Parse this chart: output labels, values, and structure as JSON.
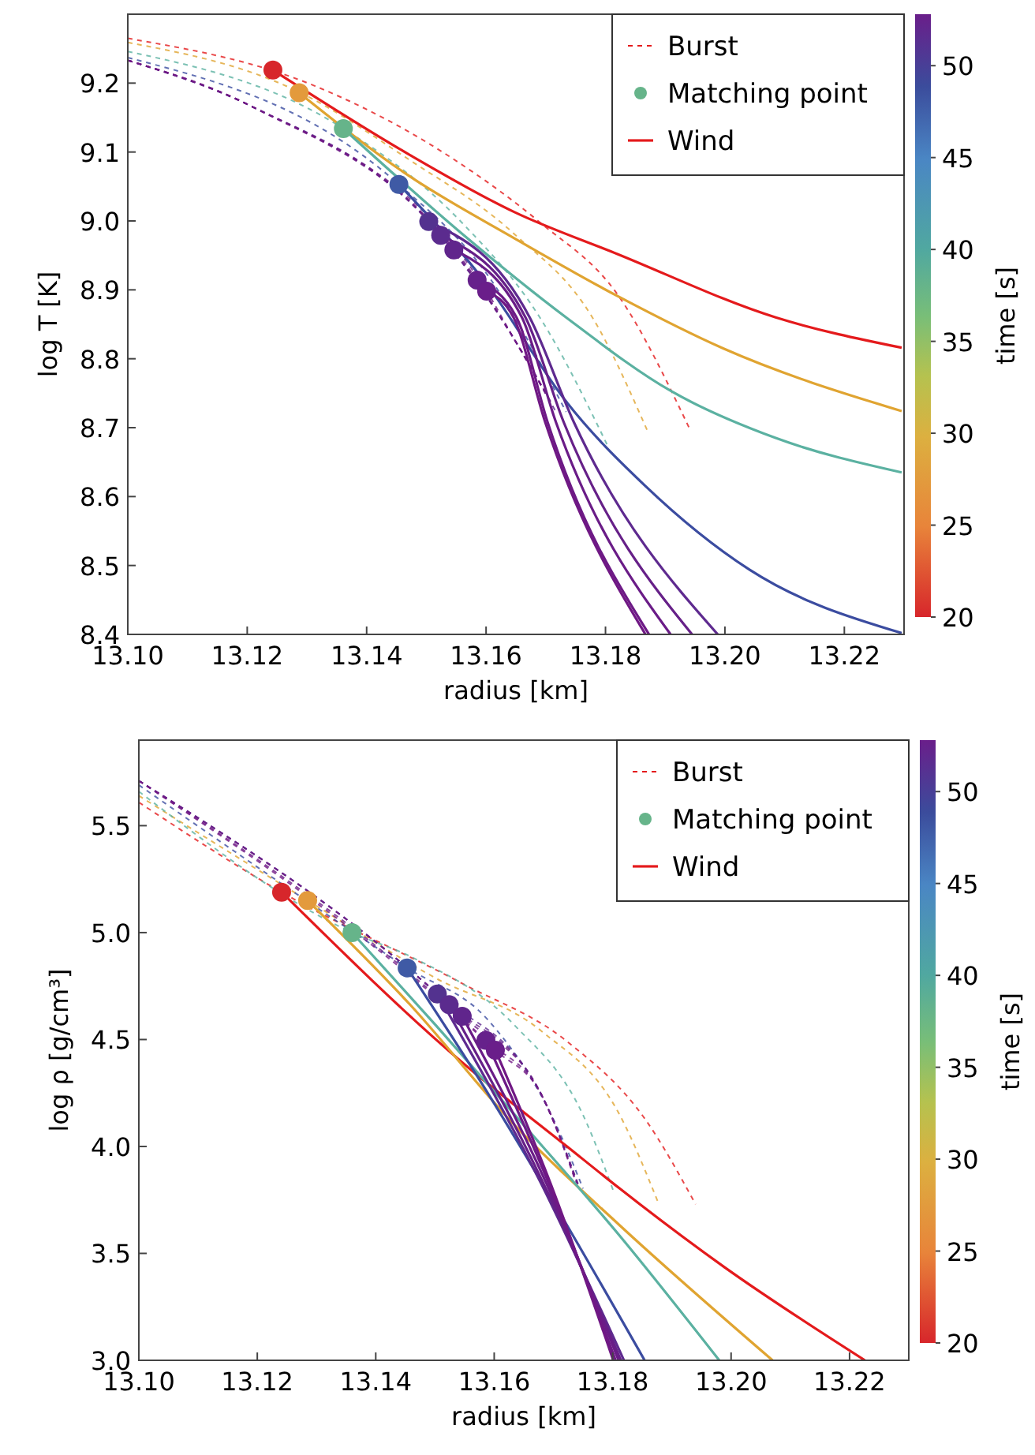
{
  "chart_data": [
    {
      "type": "line",
      "xlabel": "radius [km]",
      "ylabel": "log T [K]",
      "clabel": "time [s]",
      "legend": "top right",
      "xlim": [
        13.1,
        13.23
      ],
      "xticks": [
        {
          "value": 13.1,
          "label": "13.10"
        },
        {
          "value": 13.12,
          "label": "13.12"
        },
        {
          "value": 13.14,
          "label": "13.14"
        },
        {
          "value": 13.16,
          "label": "13.16"
        },
        {
          "value": 13.18,
          "label": "13.18"
        },
        {
          "value": 13.2,
          "label": "13.20"
        },
        {
          "value": 13.22,
          "label": "13.22"
        }
      ],
      "ylim": [
        8.4,
        9.3
      ],
      "yticks": [
        8.4,
        8.5,
        8.6,
        8.7,
        8.8,
        8.9,
        {
          "value": 9,
          "label": "9.0"
        },
        9.1,
        9.2
      ],
      "clim": [
        20,
        52.8
      ],
      "cticks": [
        20,
        25,
        30,
        35,
        40,
        45,
        50
      ],
      "series": [
        {
          "name": "Burst",
          "type": "line",
          "line_style": "dashed",
          "color": "#e41a1c",
          "x": [
            13.1,
            13.1313,
            13.1559,
            13.169,
            13.1822,
            13.194
          ],
          "values": [
            9.265,
            9.196,
            9.082,
            8.998,
            8.891,
            8.7
          ]
        },
        {
          "type": "line",
          "line_style": "dashed",
          "color": "#e0a431",
          "x": [
            13.1,
            13.1287,
            13.1471,
            13.1646,
            13.1778,
            13.187
          ],
          "values": [
            9.259,
            9.187,
            9.089,
            8.982,
            8.86,
            8.696
          ]
        },
        {
          "type": "line",
          "line_style": "dashed",
          "color": "#5bb1a1",
          "x": [
            13.1,
            13.1361,
            13.1559,
            13.169,
            13.1804
          ],
          "values": [
            9.246,
            9.134,
            8.998,
            8.86,
            8.673
          ]
        },
        {
          "type": "line",
          "line_style": "dashed",
          "color": "#3b4ca0",
          "x": [
            13.1,
            13.1454,
            13.1603,
            13.1734
          ],
          "values": [
            9.237,
            9.053,
            8.921,
            8.723
          ]
        },
        {
          "type": "line",
          "line_style": "dashed",
          "color": "#5e2a8f",
          "x": [
            13.1,
            13.1208,
            13.1504,
            13.1646,
            13.1717
          ],
          "values": [
            9.233,
            9.166,
            8.999,
            8.83,
            8.723
          ]
        },
        {
          "type": "line",
          "line_style": "dashed",
          "color": "#662088",
          "x": [
            13.1,
            13.1208,
            13.1524,
            13.1646,
            13.1712
          ],
          "values": [
            9.233,
            9.166,
            8.979,
            8.83,
            8.73
          ]
        },
        {
          "type": "line",
          "line_style": "dashed",
          "color": "#6a1c87",
          "x": [
            13.1,
            13.1208,
            13.1546,
            13.1646,
            13.1708
          ],
          "values": [
            9.233,
            9.166,
            8.958,
            8.83,
            8.738
          ]
        },
        {
          "type": "line",
          "line_style": "dashed",
          "color": "#6d1a86",
          "x": [
            13.1,
            13.1208,
            13.1585,
            13.1646,
            13.1703
          ],
          "values": [
            9.233,
            9.166,
            8.914,
            8.83,
            8.745
          ]
        },
        {
          "type": "line",
          "line_style": "dashed",
          "color": "#701884",
          "x": [
            13.1,
            13.1208,
            13.1601,
            13.1646,
            13.1699
          ],
          "values": [
            9.233,
            9.166,
            8.898,
            8.83,
            8.752
          ]
        },
        {
          "name": "Matching point",
          "type": "scatter",
          "marker": "circle",
          "color": "#66b48a",
          "colors": [
            "#d7262b",
            "#e39a3c",
            "#66b48a",
            "#3f5aa5",
            "#53328f",
            "#5b2b8e",
            "#60258c",
            "#66218b",
            "#6a1e8a"
          ],
          "x": [
            13.1243,
            13.1287,
            13.1361,
            13.1454,
            13.1504,
            13.1524,
            13.1546,
            13.1585,
            13.1601
          ],
          "values": [
            9.219,
            9.186,
            9.134,
            9.053,
            8.999,
            8.979,
            8.958,
            8.914,
            8.898
          ]
        },
        {
          "name": "Wind",
          "type": "line",
          "line_style": "solid",
          "color": "#e41a1c",
          "x": [
            13.1243,
            13.147,
            13.1647,
            13.182,
            13.2085,
            13.2296
          ],
          "values": [
            9.219,
            9.097,
            9.013,
            8.952,
            8.86,
            8.816
          ]
        },
        {
          "type": "line",
          "line_style": "solid",
          "color": "#e0a431",
          "x": [
            13.1287,
            13.147,
            13.1647,
            13.182,
            13.1997,
            13.2296
          ],
          "values": [
            9.186,
            9.066,
            8.975,
            8.891,
            8.815,
            8.724
          ]
        },
        {
          "type": "line",
          "line_style": "solid",
          "color": "#5bb1a1",
          "x": [
            13.1361,
            13.1559,
            13.1734,
            13.191,
            13.2085,
            13.2296
          ],
          "values": [
            9.134,
            8.982,
            8.86,
            8.753,
            8.685,
            8.635
          ]
        },
        {
          "type": "line",
          "line_style": "solid",
          "color": "#3b4ca0",
          "x": [
            13.1454,
            13.1603,
            13.1734,
            13.1866,
            13.2041,
            13.2296
          ],
          "values": [
            9.053,
            8.906,
            8.738,
            8.616,
            8.494,
            8.402
          ]
        },
        {
          "type": "line",
          "line_style": "solid",
          "color": "#5e2a8f",
          "x": [
            13.1504,
            13.1673,
            13.1747,
            13.1988
          ],
          "values": [
            8.999,
            8.86,
            8.708,
            8.4
          ]
        },
        {
          "type": "line",
          "line_style": "solid",
          "color": "#662088",
          "x": [
            13.1524,
            13.1666,
            13.173,
            13.1945
          ],
          "values": [
            8.979,
            8.86,
            8.708,
            8.4
          ]
        },
        {
          "type": "line",
          "line_style": "solid",
          "color": "#6a1c87",
          "x": [
            13.1546,
            13.166,
            13.1717,
            13.1909
          ],
          "values": [
            8.958,
            8.86,
            8.708,
            8.4
          ]
        },
        {
          "type": "line",
          "line_style": "solid",
          "color": "#6d1a86",
          "x": [
            13.1585,
            13.1651,
            13.1703,
            13.1873
          ],
          "values": [
            8.914,
            8.86,
            8.708,
            8.4
          ]
        },
        {
          "type": "line",
          "line_style": "solid",
          "color": "#701884",
          "x": [
            13.1601,
            13.1646,
            13.1699,
            13.1867
          ],
          "values": [
            8.898,
            8.86,
            8.708,
            8.4
          ]
        }
      ]
    },
    {
      "type": "line",
      "xlabel": "radius [km]",
      "ylabel": "log ρ [g/cm³]",
      "clabel": "time [s]",
      "legend": "top right",
      "xlim": [
        13.1,
        13.23
      ],
      "xticks": [
        {
          "value": 13.1,
          "label": "13.10"
        },
        {
          "value": 13.12,
          "label": "13.12"
        },
        {
          "value": 13.14,
          "label": "13.14"
        },
        {
          "value": 13.16,
          "label": "13.16"
        },
        {
          "value": 13.18,
          "label": "13.18"
        },
        {
          "value": 13.2,
          "label": "13.20"
        },
        {
          "value": 13.22,
          "label": "13.22"
        }
      ],
      "ylim": [
        3.0,
        5.9
      ],
      "yticks": [
        {
          "value": 3,
          "label": "3.0"
        },
        3.5,
        {
          "value": 4,
          "label": "4.0"
        },
        4.5,
        {
          "value": 5,
          "label": "5.0"
        },
        5.5
      ],
      "clim": [
        20,
        52.8
      ],
      "cticks": [
        20,
        25,
        30,
        35,
        40,
        45,
        50
      ],
      "series": [
        {
          "name": "Burst",
          "type": "line",
          "line_style": "dashed",
          "color": "#e41a1c",
          "x": [
            13.1,
            13.1241,
            13.1546,
            13.1723,
            13.1856,
            13.194
          ],
          "values": [
            5.609,
            5.189,
            4.762,
            4.491,
            4.123,
            3.73
          ]
        },
        {
          "type": "line",
          "line_style": "dashed",
          "color": "#e0a431",
          "x": [
            13.1,
            13.1285,
            13.1502,
            13.1679,
            13.1812,
            13.1878
          ],
          "values": [
            5.64,
            5.15,
            4.786,
            4.541,
            4.147,
            3.73
          ]
        },
        {
          "type": "line",
          "line_style": "dashed",
          "color": "#5bb1a1",
          "x": [
            13.1,
            13.136,
            13.1458,
            13.1635,
            13.175,
            13.1803
          ],
          "values": [
            5.66,
            5.0,
            4.889,
            4.565,
            4.147,
            3.779
          ]
        },
        {
          "type": "line",
          "line_style": "dashed",
          "color": "#3b4ca0",
          "x": [
            13.1,
            13.1453,
            13.159,
            13.1705,
            13.175
          ],
          "values": [
            5.69,
            4.835,
            4.59,
            4.098,
            3.803
          ]
        },
        {
          "type": "line",
          "line_style": "dashed",
          "color": "#5e2a8f",
          "x": [
            13.1,
            13.1504,
            13.1679,
            13.1745
          ],
          "values": [
            5.71,
            4.713,
            4.246,
            3.8
          ]
        },
        {
          "type": "line",
          "line_style": "dashed",
          "color": "#662088",
          "x": [
            13.1,
            13.1524,
            13.1679,
            13.1743
          ],
          "values": [
            5.71,
            4.663,
            4.246,
            3.81
          ]
        },
        {
          "type": "line",
          "line_style": "dashed",
          "color": "#6a1c87",
          "x": [
            13.1,
            13.1546,
            13.1679,
            13.1741
          ],
          "values": [
            5.71,
            4.609,
            4.246,
            3.82
          ]
        },
        {
          "type": "line",
          "line_style": "dashed",
          "color": "#6d1a86",
          "x": [
            13.1,
            13.1586,
            13.1679,
            13.1739
          ],
          "values": [
            5.71,
            4.496,
            4.246,
            3.83
          ]
        },
        {
          "type": "line",
          "line_style": "dashed",
          "color": "#701884",
          "x": [
            13.1,
            13.1602,
            13.1679,
            13.1737
          ],
          "values": [
            5.71,
            4.45,
            4.246,
            3.84
          ]
        },
        {
          "name": "Matching point",
          "type": "scatter",
          "marker": "circle",
          "color": "#66b48a",
          "colors": [
            "#d7262b",
            "#e39a3c",
            "#66b48a",
            "#3f5aa5",
            "#53328f",
            "#5b2b8e",
            "#60258c",
            "#66218b",
            "#6a1e8a"
          ],
          "x": [
            13.1241,
            13.1285,
            13.136,
            13.1453,
            13.1504,
            13.1524,
            13.1546,
            13.1586,
            13.1602
          ],
          "values": [
            5.189,
            5.15,
            5.0,
            4.835,
            4.713,
            4.663,
            4.609,
            4.496,
            4.45
          ]
        },
        {
          "name": "Wind",
          "line_style": "solid",
          "color": "#e41a1c",
          "x": [
            13.1241,
            13.1546,
            13.1723,
            13.1812,
            13.1989,
            13.2226
          ],
          "values": [
            5.189,
            4.393,
            4.0,
            3.803,
            3.435,
            3.0
          ]
        },
        {
          "type": "line",
          "line_style": "solid",
          "color": "#e0a431",
          "x": [
            13.1285,
            13.1458,
            13.1635,
            13.1812,
            13.207
          ],
          "values": [
            5.15,
            4.663,
            4.098,
            3.631,
            3.0
          ]
        },
        {
          "type": "line",
          "line_style": "solid",
          "color": "#5bb1a1",
          "x": [
            13.136,
            13.1502,
            13.1635,
            13.1812,
            13.198
          ],
          "values": [
            5.0,
            4.565,
            4.147,
            3.582,
            3.0
          ]
        },
        {
          "type": "line",
          "line_style": "solid",
          "color": "#3b4ca0",
          "x": [
            13.1453,
            13.159,
            13.1723,
            13.1854
          ],
          "values": [
            4.835,
            4.246,
            3.631,
            3.0
          ]
        },
        {
          "type": "line",
          "line_style": "solid",
          "color": "#5e2a8f",
          "x": [
            13.1504,
            13.1679,
            13.1819
          ],
          "values": [
            4.713,
            3.828,
            3.0
          ]
        },
        {
          "type": "line",
          "line_style": "solid",
          "color": "#662088",
          "x": [
            13.1524,
            13.1683,
            13.1814
          ],
          "values": [
            4.663,
            3.828,
            3.0
          ]
        },
        {
          "type": "line",
          "line_style": "solid",
          "color": "#6a1c87",
          "x": [
            13.1546,
            13.1688,
            13.181
          ],
          "values": [
            4.609,
            3.828,
            3.0
          ]
        },
        {
          "type": "line",
          "line_style": "solid",
          "color": "#6d1a86",
          "x": [
            13.1586,
            13.1692,
            13.1805
          ],
          "values": [
            4.496,
            3.828,
            3.0
          ]
        },
        {
          "type": "line",
          "line_style": "solid",
          "color": "#701884",
          "x": [
            13.1602,
            13.1695,
            13.1801
          ],
          "values": [
            4.45,
            3.828,
            3.0
          ]
        }
      ]
    }
  ]
}
